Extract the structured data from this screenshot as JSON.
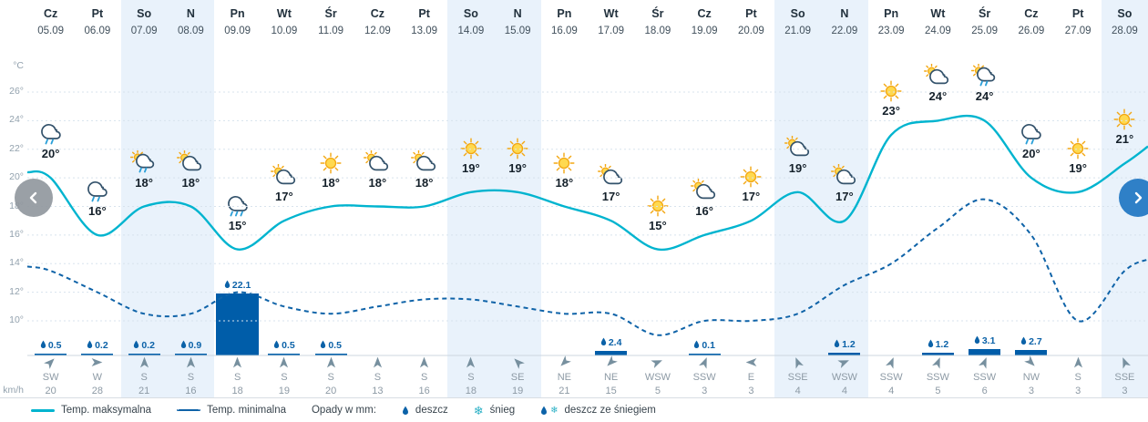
{
  "y_axis": {
    "top_unit": "°C",
    "bottom_unit": "km/h"
  },
  "legend": {
    "max": "Temp. maksymalna",
    "min": "Temp. minimalna",
    "precip": "Opady w mm:",
    "rain": "deszcz",
    "snow": "śnieg",
    "rain_snow": "deszcz ze śniegiem"
  },
  "glyphs": {
    "snowflake": "❄"
  },
  "colors": {
    "max_line": "#00b4cf",
    "min_line": "#0f63a8",
    "precip_bar": "#005da9",
    "weekend_bg": "#e9f2fb",
    "next_button": "#2f80c7"
  },
  "chart_data": {
    "type": "line",
    "x_labels": [
      "05.09",
      "06.09",
      "07.09",
      "08.09",
      "09.09",
      "10.09",
      "11.09",
      "12.09",
      "13.09",
      "14.09",
      "15.09",
      "16.09",
      "17.09",
      "18.09",
      "19.09",
      "20.09",
      "21.09",
      "22.09",
      "23.09",
      "24.09",
      "25.09",
      "26.09",
      "27.09",
      "28.09"
    ],
    "series": [
      {
        "name": "Temp. maksymalna",
        "style": "solid",
        "color": "#00b4cf",
        "values": [
          20,
          16,
          18,
          18,
          15,
          17,
          18,
          18,
          18,
          19,
          19,
          18,
          17,
          15,
          16,
          17,
          19,
          17,
          23,
          24,
          24,
          20,
          19,
          21
        ]
      },
      {
        "name": "Temp. minimalna",
        "style": "dashed",
        "color": "#0f63a8",
        "values": [
          13.5,
          12,
          10.5,
          10.5,
          12,
          11,
          10.5,
          11,
          11.5,
          11.5,
          11,
          10.5,
          10.5,
          9,
          10,
          10,
          10.5,
          12.5,
          14,
          16.5,
          18.5,
          16,
          10,
          13.5
        ]
      }
    ],
    "y_ticks": [
      26,
      24,
      22,
      20,
      18,
      16,
      14,
      12,
      10
    ],
    "y_unit": "°C",
    "ylim": [
      8.5,
      27
    ],
    "grid": true,
    "precipitation_mm": [
      0.5,
      0.2,
      0.2,
      0.9,
      22.1,
      0.5,
      0.5,
      null,
      null,
      null,
      null,
      null,
      2.4,
      null,
      0.1,
      null,
      null,
      1.2,
      null,
      1.2,
      3.1,
      2.7,
      null,
      null
    ],
    "wind_unit": "km/h",
    "wind_directions": [
      "SW",
      "W",
      "S",
      "S",
      "S",
      "S",
      "S",
      "S",
      "S",
      "S",
      "SE",
      "NE",
      "NE",
      "WSW",
      "SSW",
      "E",
      "SSE",
      "WSW",
      "SSW",
      "SSW",
      "SSW",
      "NW",
      "S",
      "SSE"
    ],
    "wind_speeds_kmh": [
      20,
      28,
      21,
      16,
      18,
      19,
      20,
      13,
      16,
      18,
      19,
      21,
      15,
      5,
      3,
      3,
      4,
      4,
      4,
      5,
      6,
      3,
      3,
      3
    ]
  },
  "days": [
    {
      "name": "Cz",
      "date": "05.09",
      "icon": "rain",
      "temp": "20°",
      "precip": "0.5",
      "wind_dir": "SW",
      "wind_speed": "20",
      "weekend": false
    },
    {
      "name": "Pt",
      "date": "06.09",
      "icon": "rain",
      "temp": "16°",
      "precip": "0.2",
      "wind_dir": "W",
      "wind_speed": "28",
      "weekend": false
    },
    {
      "name": "So",
      "date": "07.09",
      "icon": "rain-sun",
      "temp": "18°",
      "precip": "0.2",
      "wind_dir": "S",
      "wind_speed": "21",
      "weekend": true
    },
    {
      "name": "N",
      "date": "08.09",
      "icon": "cloud-sun",
      "temp": "18°",
      "precip": "0.9",
      "wind_dir": "S",
      "wind_speed": "16",
      "weekend": true
    },
    {
      "name": "Pn",
      "date": "09.09",
      "icon": "heavy-rain",
      "temp": "15°",
      "precip": "22.1",
      "wind_dir": "S",
      "wind_speed": "18",
      "weekend": false
    },
    {
      "name": "Wt",
      "date": "10.09",
      "icon": "cloud-sun",
      "temp": "17°",
      "precip": "0.5",
      "wind_dir": "S",
      "wind_speed": "19",
      "weekend": false
    },
    {
      "name": "Śr",
      "date": "11.09",
      "icon": "sun",
      "temp": "18°",
      "precip": "0.5",
      "wind_dir": "S",
      "wind_speed": "20",
      "weekend": false
    },
    {
      "name": "Cz",
      "date": "12.09",
      "icon": "cloud-sun",
      "temp": "18°",
      "precip": "",
      "wind_dir": "S",
      "wind_speed": "13",
      "weekend": false
    },
    {
      "name": "Pt",
      "date": "13.09",
      "icon": "cloud-sun",
      "temp": "18°",
      "precip": "",
      "wind_dir": "S",
      "wind_speed": "16",
      "weekend": false
    },
    {
      "name": "So",
      "date": "14.09",
      "icon": "sun",
      "temp": "19°",
      "precip": "",
      "wind_dir": "S",
      "wind_speed": "18",
      "weekend": true
    },
    {
      "name": "N",
      "date": "15.09",
      "icon": "sun",
      "temp": "19°",
      "precip": "",
      "wind_dir": "SE",
      "wind_speed": "19",
      "weekend": true
    },
    {
      "name": "Pn",
      "date": "16.09",
      "icon": "sun",
      "temp": "18°",
      "precip": "",
      "wind_dir": "NE",
      "wind_speed": "21",
      "weekend": false
    },
    {
      "name": "Wt",
      "date": "17.09",
      "icon": "cloud-sun",
      "temp": "17°",
      "precip": "2.4",
      "wind_dir": "NE",
      "wind_speed": "15",
      "weekend": false
    },
    {
      "name": "Śr",
      "date": "18.09",
      "icon": "sun",
      "temp": "15°",
      "precip": "",
      "wind_dir": "WSW",
      "wind_speed": "5",
      "weekend": false
    },
    {
      "name": "Cz",
      "date": "19.09",
      "icon": "cloud-sun",
      "temp": "16°",
      "precip": "0.1",
      "wind_dir": "SSW",
      "wind_speed": "3",
      "weekend": false
    },
    {
      "name": "Pt",
      "date": "20.09",
      "icon": "sun",
      "temp": "17°",
      "precip": "",
      "wind_dir": "E",
      "wind_speed": "3",
      "weekend": false
    },
    {
      "name": "So",
      "date": "21.09",
      "icon": "cloud-sun",
      "temp": "19°",
      "precip": "",
      "wind_dir": "SSE",
      "wind_speed": "4",
      "weekend": true
    },
    {
      "name": "N",
      "date": "22.09",
      "icon": "cloud-sun",
      "temp": "17°",
      "precip": "1.2",
      "wind_dir": "WSW",
      "wind_speed": "4",
      "weekend": true
    },
    {
      "name": "Pn",
      "date": "23.09",
      "icon": "sun",
      "temp": "23°",
      "precip": "",
      "wind_dir": "SSW",
      "wind_speed": "4",
      "weekend": false
    },
    {
      "name": "Wt",
      "date": "24.09",
      "icon": "cloud-sun",
      "temp": "24°",
      "precip": "1.2",
      "wind_dir": "SSW",
      "wind_speed": "5",
      "weekend": false
    },
    {
      "name": "Śr",
      "date": "25.09",
      "icon": "rain-sun",
      "temp": "24°",
      "precip": "3.1",
      "wind_dir": "SSW",
      "wind_speed": "6",
      "weekend": false
    },
    {
      "name": "Cz",
      "date": "26.09",
      "icon": "rain",
      "temp": "20°",
      "precip": "2.7",
      "wind_dir": "NW",
      "wind_speed": "3",
      "weekend": false
    },
    {
      "name": "Pt",
      "date": "27.09",
      "icon": "sun",
      "temp": "19°",
      "precip": "",
      "wind_dir": "S",
      "wind_speed": "3",
      "weekend": false
    },
    {
      "name": "So",
      "date": "28.09",
      "icon": "sun",
      "temp": "21°",
      "precip": "",
      "wind_dir": "SSE",
      "wind_speed": "3",
      "weekend": true
    }
  ]
}
